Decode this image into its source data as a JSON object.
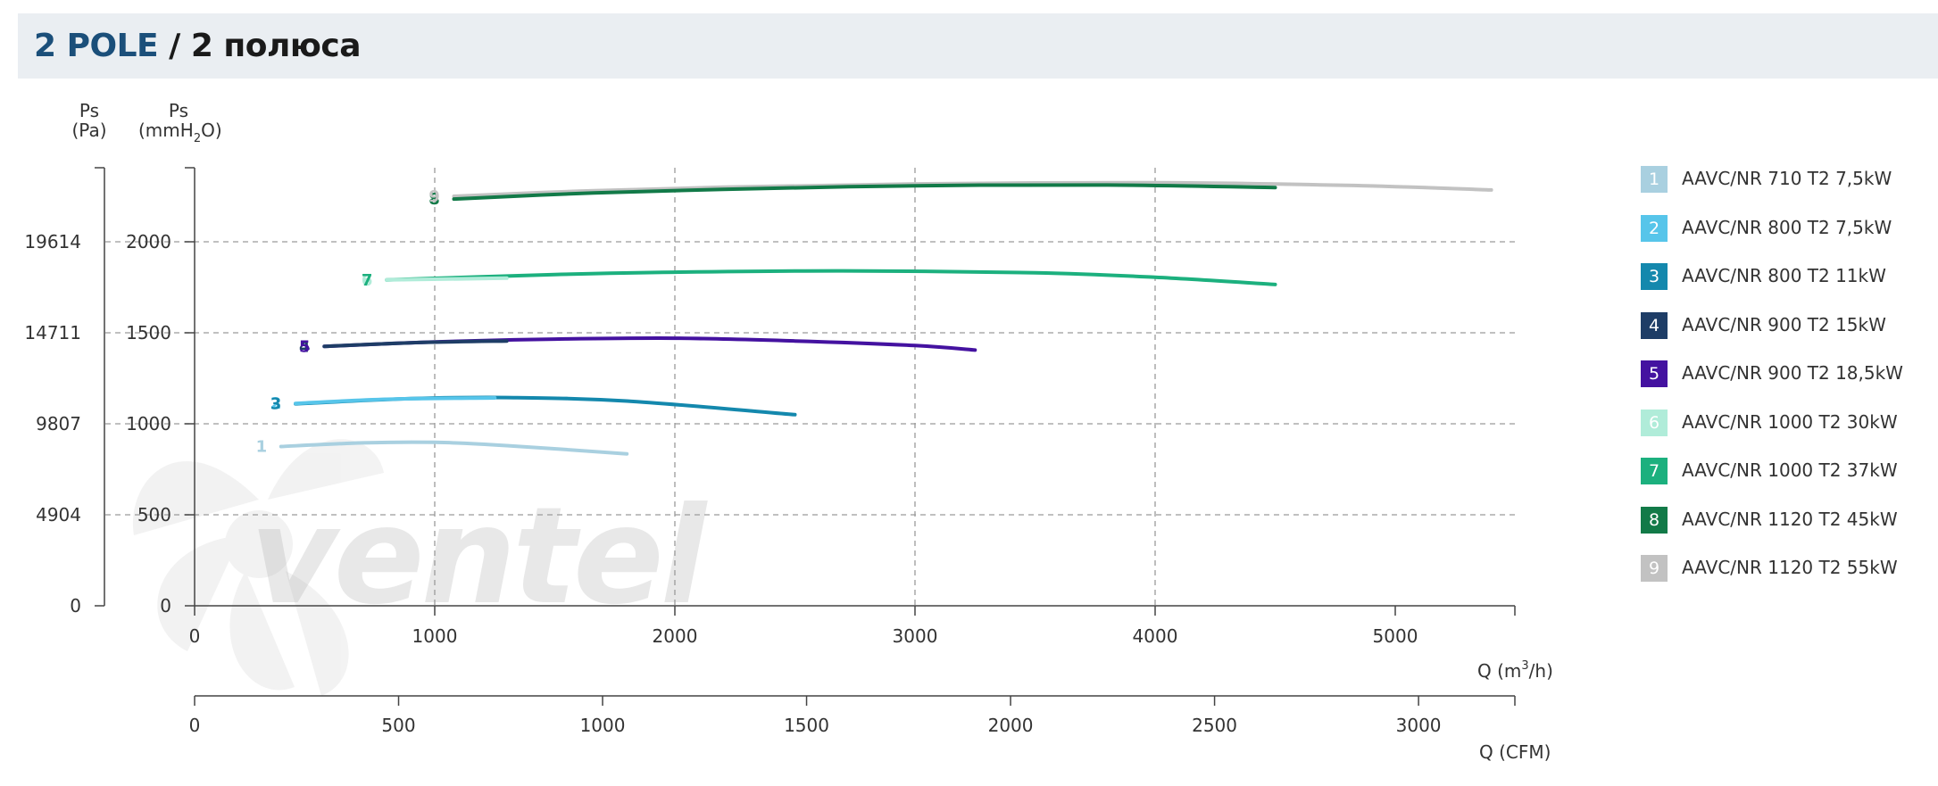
{
  "header": {
    "title_main": "2 POLE",
    "title_sub": "/ 2 полюса"
  },
  "watermark": "ventel",
  "chart_data": {
    "type": "line",
    "y_axes": [
      {
        "label_line1": "Ps",
        "label_line2": "(Pa)",
        "ticks": [
          "0",
          "4904",
          "9807",
          "14711",
          "19614"
        ]
      },
      {
        "label_line1": "Ps",
        "label_line2": "(mmH",
        "label_sub": "2",
        "label_end": "O)",
        "range": [
          0,
          2400
        ],
        "ticks": [
          0,
          500,
          1000,
          1500,
          2000
        ]
      }
    ],
    "x_axes": [
      {
        "label": "Q (m",
        "label_sup": "3",
        "label_end": "/h)",
        "range": [
          0,
          5500
        ],
        "ticks": [
          0,
          1000,
          2000,
          3000,
          4000,
          5000
        ]
      },
      {
        "label": "Q (CFM)",
        "range": [
          0,
          3237
        ],
        "ticks": [
          0,
          500,
          1000,
          1500,
          2000,
          2500,
          3000
        ]
      }
    ],
    "grid": "dashed",
    "legend_position": "right",
    "series": [
      {
        "id": "1",
        "name": "AAVC/NR 710 T2 7,5kW",
        "color": "#a9d0e0",
        "points": [
          [
            360,
            875
          ],
          [
            700,
            895
          ],
          [
            1000,
            898
          ],
          [
            1300,
            880
          ],
          [
            1800,
            835
          ]
        ]
      },
      {
        "id": "2",
        "name": "AAVC/NR 800 T2 7,5kW",
        "color": "#57c5ea",
        "points": [
          [
            420,
            1112
          ],
          [
            800,
            1135
          ],
          [
            1250,
            1142
          ]
        ]
      },
      {
        "id": "3",
        "name": "AAVC/NR 800 T2 11kW",
        "color": "#1488ad",
        "points": [
          [
            420,
            1110
          ],
          [
            900,
            1138
          ],
          [
            1300,
            1144
          ],
          [
            1800,
            1125
          ],
          [
            2500,
            1050
          ]
        ]
      },
      {
        "id": "4",
        "name": "AAVC/NR 900 T2 15kW",
        "color": "#1e3d66",
        "points": [
          [
            540,
            1425
          ],
          [
            900,
            1445
          ],
          [
            1300,
            1455
          ]
        ]
      },
      {
        "id": "5",
        "name": "AAVC/NR 900 T2 18,5kW",
        "color": "#4412a0",
        "points": [
          [
            540,
            1425
          ],
          [
            1000,
            1450
          ],
          [
            1500,
            1465
          ],
          [
            2000,
            1470
          ],
          [
            2500,
            1455
          ],
          [
            3000,
            1430
          ],
          [
            3250,
            1405
          ]
        ]
      },
      {
        "id": "6",
        "name": "AAVC/NR 1000 T2 30kW",
        "color": "#b0ecd9",
        "points": [
          [
            800,
            1790
          ],
          [
            1300,
            1800
          ]
        ]
      },
      {
        "id": "7",
        "name": "AAVC/NR 1000 T2 37kW",
        "color": "#1cb07e",
        "points": [
          [
            800,
            1790
          ],
          [
            1500,
            1820
          ],
          [
            2000,
            1833
          ],
          [
            2700,
            1840
          ],
          [
            3500,
            1830
          ],
          [
            4000,
            1805
          ],
          [
            4500,
            1765
          ]
        ]
      },
      {
        "id": "8",
        "name": "AAVC/NR 1120 T2 45kW",
        "color": "#127a48",
        "points": [
          [
            1080,
            2235
          ],
          [
            1600,
            2265
          ],
          [
            2200,
            2288
          ],
          [
            3000,
            2308
          ],
          [
            3800,
            2312
          ],
          [
            4500,
            2298
          ]
        ]
      },
      {
        "id": "9",
        "name": "AAVC/NR 1120 T2 55kW",
        "color": "#c2c2c2",
        "points": [
          [
            1080,
            2250
          ],
          [
            1600,
            2278
          ],
          [
            2200,
            2300
          ],
          [
            3000,
            2318
          ],
          [
            4000,
            2325
          ],
          [
            4800,
            2310
          ],
          [
            5400,
            2285
          ]
        ]
      }
    ]
  }
}
